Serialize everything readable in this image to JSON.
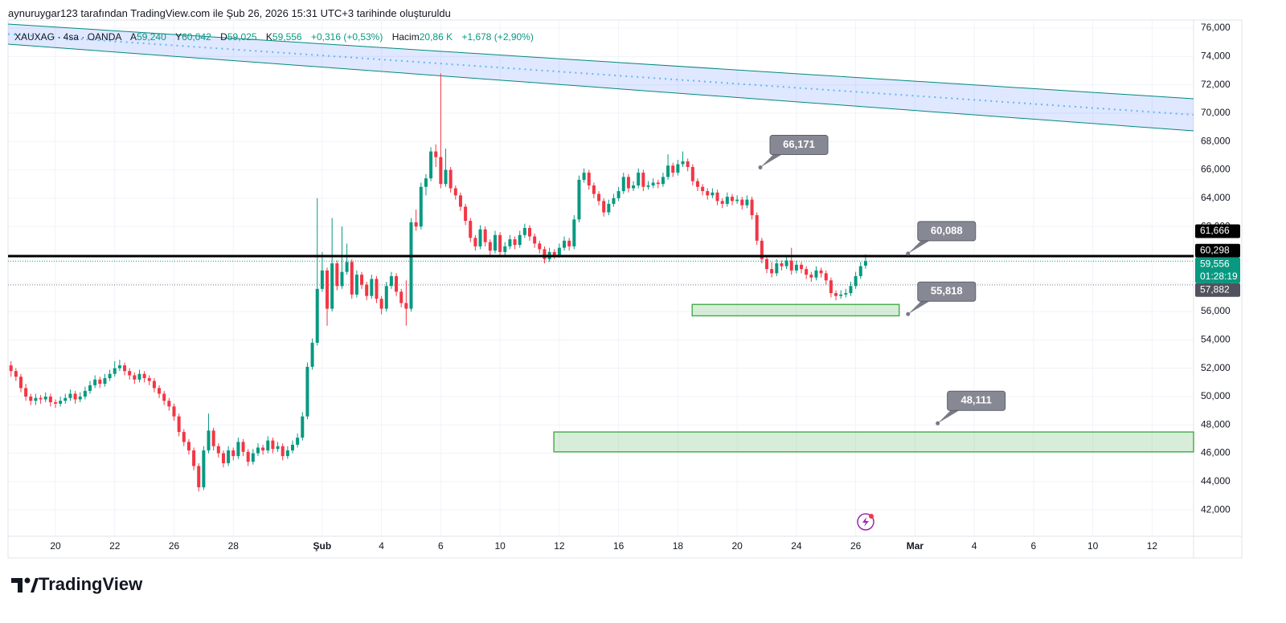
{
  "header": {
    "attribution": "aynuruygar123 tarafından TradingView.com ile Şub 26, 2026 15:31 UTC+3 tarihinde oluşturuldu"
  },
  "footer": {
    "brand": "TradingView"
  },
  "chart_data": {
    "type": "candlestick",
    "symbol": "XAUXAG · 4sa · OANDA",
    "legend": {
      "open_key": "A",
      "open": "59,240",
      "high_key": "Y",
      "high": "60,042",
      "low_key": "D",
      "low": "59,025",
      "close_key": "K",
      "close": "59,556",
      "change": "+0,316 (+0,53%)",
      "volume_key": "Hacim",
      "volume": "20,86 K",
      "volume_change": "+1,678 (+2,90%)"
    },
    "up_color": "#089981",
    "down_color": "#f23645",
    "ohlc": [
      [
        52.2,
        52.5,
        51.4,
        51.8
      ],
      [
        51.8,
        52.0,
        51.1,
        51.4
      ],
      [
        51.4,
        51.6,
        50.3,
        50.6
      ],
      [
        50.6,
        50.9,
        49.7,
        50.0
      ],
      [
        50.0,
        50.2,
        49.4,
        49.7
      ],
      [
        49.7,
        50.2,
        49.4,
        49.9
      ],
      [
        49.9,
        50.1,
        49.5,
        49.8
      ],
      [
        49.8,
        50.3,
        49.6,
        50.0
      ],
      [
        50.0,
        50.2,
        49.3,
        49.6
      ],
      [
        49.6,
        49.8,
        49.2,
        49.5
      ],
      [
        49.5,
        50.0,
        49.3,
        49.7
      ],
      [
        49.7,
        50.2,
        49.5,
        49.9
      ],
      [
        49.9,
        50.5,
        49.7,
        50.2
      ],
      [
        50.2,
        50.4,
        49.5,
        49.8
      ],
      [
        49.8,
        50.3,
        49.6,
        50.0
      ],
      [
        50.0,
        50.7,
        49.8,
        50.4
      ],
      [
        50.4,
        51.1,
        50.2,
        50.8
      ],
      [
        50.8,
        51.5,
        50.6,
        51.2
      ],
      [
        51.2,
        51.4,
        50.6,
        50.9
      ],
      [
        50.9,
        51.6,
        50.7,
        51.3
      ],
      [
        51.3,
        51.9,
        51.1,
        51.6
      ],
      [
        51.6,
        52.5,
        51.4,
        52.0
      ],
      [
        52.0,
        52.6,
        51.8,
        52.2
      ],
      [
        52.2,
        52.4,
        51.5,
        51.8
      ],
      [
        51.8,
        52.0,
        51.2,
        51.5
      ],
      [
        51.5,
        51.7,
        50.9,
        51.2
      ],
      [
        51.2,
        51.9,
        51.0,
        51.6
      ],
      [
        51.6,
        51.8,
        51.0,
        51.3
      ],
      [
        51.3,
        51.5,
        50.8,
        51.1
      ],
      [
        51.1,
        51.3,
        50.3,
        50.6
      ],
      [
        50.6,
        50.8,
        49.9,
        50.2
      ],
      [
        50.2,
        50.4,
        49.4,
        49.7
      ],
      [
        49.7,
        49.9,
        49.0,
        49.3
      ],
      [
        49.3,
        49.5,
        48.3,
        48.6
      ],
      [
        48.6,
        48.8,
        47.2,
        47.5
      ],
      [
        47.5,
        47.7,
        46.5,
        46.8
      ],
      [
        46.8,
        47.0,
        45.9,
        46.2
      ],
      [
        46.2,
        46.4,
        44.8,
        45.1
      ],
      [
        45.1,
        45.3,
        43.3,
        43.6
      ],
      [
        43.6,
        46.5,
        43.4,
        46.2
      ],
      [
        46.2,
        48.8,
        46.0,
        47.6
      ],
      [
        47.6,
        47.8,
        46.2,
        46.5
      ],
      [
        46.5,
        46.7,
        45.7,
        46.0
      ],
      [
        46.0,
        46.2,
        45.0,
        45.3
      ],
      [
        45.3,
        46.5,
        45.1,
        46.2
      ],
      [
        46.2,
        46.4,
        45.5,
        45.8
      ],
      [
        45.8,
        47.1,
        45.6,
        46.8
      ],
      [
        46.8,
        47.0,
        45.8,
        46.1
      ],
      [
        46.1,
        46.3,
        45.1,
        45.4
      ],
      [
        45.4,
        46.3,
        45.2,
        46.0
      ],
      [
        46.0,
        46.7,
        45.8,
        46.4
      ],
      [
        46.4,
        46.6,
        45.9,
        46.2
      ],
      [
        46.2,
        47.2,
        46.0,
        46.9
      ],
      [
        46.9,
        47.1,
        46.0,
        46.3
      ],
      [
        46.3,
        46.8,
        46.1,
        46.5
      ],
      [
        46.5,
        46.7,
        45.5,
        45.8
      ],
      [
        45.8,
        46.5,
        45.6,
        46.2
      ],
      [
        46.2,
        46.9,
        46.0,
        46.6
      ],
      [
        46.6,
        47.4,
        46.4,
        47.1
      ],
      [
        47.1,
        48.9,
        46.9,
        48.6
      ],
      [
        48.6,
        52.4,
        48.4,
        52.1
      ],
      [
        52.1,
        54.1,
        51.9,
        53.8
      ],
      [
        53.8,
        64.0,
        53.6,
        57.6
      ],
      [
        57.6,
        60.2,
        57.4,
        58.9
      ],
      [
        58.9,
        59.1,
        55.0,
        56.2
      ],
      [
        56.2,
        62.6,
        56.0,
        59.4
      ],
      [
        59.4,
        59.6,
        57.5,
        57.8
      ],
      [
        57.8,
        62.0,
        57.6,
        58.8
      ],
      [
        58.8,
        60.8,
        58.6,
        59.5
      ],
      [
        59.5,
        59.7,
        56.9,
        57.2
      ],
      [
        57.2,
        58.9,
        57.0,
        58.6
      ],
      [
        58.6,
        58.8,
        57.6,
        57.9
      ],
      [
        57.9,
        58.1,
        56.8,
        57.1
      ],
      [
        57.1,
        58.6,
        56.9,
        58.3
      ],
      [
        58.3,
        58.5,
        56.6,
        56.9
      ],
      [
        56.9,
        57.1,
        55.8,
        56.2
      ],
      [
        56.2,
        58.1,
        56.0,
        57.8
      ],
      [
        57.8,
        58.8,
        57.6,
        58.5
      ],
      [
        58.5,
        58.7,
        57.1,
        57.4
      ],
      [
        57.4,
        57.6,
        56.3,
        56.6
      ],
      [
        56.6,
        58.2,
        55.0,
        56.2
      ],
      [
        56.2,
        62.6,
        56.0,
        62.3
      ],
      [
        62.3,
        63.2,
        61.7,
        62.0
      ],
      [
        62.0,
        65.1,
        61.8,
        64.8
      ],
      [
        64.8,
        65.7,
        64.2,
        65.4
      ],
      [
        65.4,
        67.6,
        65.2,
        67.3
      ],
      [
        67.3,
        67.8,
        66.2,
        66.9
      ],
      [
        66.9,
        72.8,
        64.7,
        65.0
      ],
      [
        65.0,
        67.5,
        64.8,
        66.0
      ],
      [
        66.0,
        66.2,
        64.4,
        64.7
      ],
      [
        64.7,
        64.9,
        63.9,
        64.2
      ],
      [
        64.2,
        64.4,
        63.1,
        63.4
      ],
      [
        63.4,
        63.6,
        62.1,
        62.4
      ],
      [
        62.4,
        62.6,
        60.9,
        61.2
      ],
      [
        61.2,
        61.4,
        60.3,
        60.6
      ],
      [
        60.6,
        62.1,
        60.4,
        61.8
      ],
      [
        61.8,
        62.0,
        60.6,
        60.9
      ],
      [
        60.9,
        61.1,
        60.0,
        60.3
      ],
      [
        60.3,
        61.7,
        60.1,
        61.4
      ],
      [
        61.4,
        61.6,
        59.9,
        60.2
      ],
      [
        60.2,
        60.9,
        60.0,
        60.6
      ],
      [
        60.6,
        61.4,
        60.4,
        61.1
      ],
      [
        61.1,
        61.3,
        60.4,
        60.7
      ],
      [
        60.7,
        61.7,
        60.5,
        61.4
      ],
      [
        61.4,
        62.2,
        61.2,
        61.9
      ],
      [
        61.9,
        62.1,
        61.0,
        61.3
      ],
      [
        61.3,
        61.5,
        60.5,
        60.8
      ],
      [
        60.8,
        61.0,
        60.1,
        60.4
      ],
      [
        60.4,
        60.6,
        59.4,
        59.7
      ],
      [
        59.7,
        60.5,
        59.5,
        60.2
      ],
      [
        60.2,
        60.4,
        59.7,
        60.0
      ],
      [
        60.0,
        60.8,
        59.8,
        60.5
      ],
      [
        60.5,
        61.3,
        60.3,
        61.0
      ],
      [
        61.0,
        61.2,
        60.3,
        60.6
      ],
      [
        60.6,
        62.8,
        60.4,
        62.5
      ],
      [
        62.5,
        65.6,
        62.3,
        65.3
      ],
      [
        65.3,
        66.1,
        65.1,
        65.8
      ],
      [
        65.8,
        66.0,
        64.6,
        64.9
      ],
      [
        64.9,
        65.1,
        64.0,
        64.3
      ],
      [
        64.3,
        64.5,
        63.5,
        63.8
      ],
      [
        63.8,
        64.0,
        62.7,
        63.0
      ],
      [
        63.0,
        63.9,
        62.8,
        63.6
      ],
      [
        63.6,
        64.3,
        63.4,
        64.0
      ],
      [
        64.0,
        64.8,
        63.8,
        64.5
      ],
      [
        64.5,
        65.8,
        64.3,
        65.5
      ],
      [
        65.5,
        65.7,
        64.4,
        64.7
      ],
      [
        64.7,
        65.2,
        64.5,
        64.9
      ],
      [
        64.9,
        66.1,
        64.7,
        65.8
      ],
      [
        65.8,
        66.0,
        64.5,
        64.8
      ],
      [
        64.8,
        65.2,
        64.6,
        64.9
      ],
      [
        64.9,
        65.4,
        64.7,
        65.1
      ],
      [
        65.1,
        65.3,
        64.7,
        65.0
      ],
      [
        65.0,
        65.8,
        64.8,
        65.5
      ],
      [
        65.5,
        67.1,
        65.3,
        66.3
      ],
      [
        66.3,
        66.5,
        65.5,
        65.8
      ],
      [
        65.8,
        66.7,
        65.6,
        66.4
      ],
      [
        66.4,
        67.3,
        66.2,
        66.6
      ],
      [
        66.6,
        66.8,
        65.9,
        66.2
      ],
      [
        66.2,
        66.4,
        64.9,
        65.2
      ],
      [
        65.2,
        65.4,
        64.5,
        64.8
      ],
      [
        64.8,
        65.0,
        64.2,
        64.5
      ],
      [
        64.5,
        64.7,
        63.9,
        64.2
      ],
      [
        64.2,
        64.7,
        64.0,
        64.4
      ],
      [
        64.4,
        64.6,
        63.5,
        63.8
      ],
      [
        63.8,
        64.0,
        63.3,
        63.6
      ],
      [
        63.6,
        64.4,
        63.4,
        64.1
      ],
      [
        64.1,
        64.3,
        63.5,
        63.8
      ],
      [
        63.8,
        64.2,
        63.6,
        63.9
      ],
      [
        63.9,
        64.1,
        63.2,
        63.5
      ],
      [
        63.5,
        64.2,
        63.3,
        63.9
      ],
      [
        63.9,
        64.1,
        62.5,
        62.8
      ],
      [
        62.8,
        63.0,
        60.7,
        61.0
      ],
      [
        61.0,
        61.2,
        59.4,
        59.7
      ],
      [
        59.7,
        59.9,
        58.7,
        59.0
      ],
      [
        59.0,
        59.5,
        58.4,
        58.7
      ],
      [
        58.7,
        59.7,
        58.5,
        59.4
      ],
      [
        59.4,
        59.6,
        58.9,
        59.2
      ],
      [
        59.2,
        59.9,
        59.0,
        59.6
      ],
      [
        59.6,
        60.5,
        58.6,
        58.9
      ],
      [
        58.9,
        59.6,
        58.7,
        59.3
      ],
      [
        59.3,
        59.5,
        58.7,
        59.0
      ],
      [
        59.0,
        59.2,
        58.3,
        58.6
      ],
      [
        58.6,
        58.8,
        58.1,
        58.4
      ],
      [
        58.4,
        59.2,
        58.2,
        58.9
      ],
      [
        58.9,
        59.1,
        58.4,
        58.7
      ],
      [
        58.7,
        58.9,
        57.9,
        58.2
      ],
      [
        58.2,
        58.4,
        57.0,
        57.3
      ],
      [
        57.3,
        57.5,
        56.8,
        57.1
      ],
      [
        57.1,
        57.5,
        56.9,
        57.2
      ],
      [
        57.2,
        57.6,
        57.0,
        57.3
      ],
      [
        57.3,
        58.1,
        57.1,
        57.8
      ],
      [
        57.8,
        58.8,
        57.6,
        58.5
      ],
      [
        58.5,
        59.5,
        58.3,
        59.2
      ],
      [
        59.24,
        60.042,
        59.025,
        59.556
      ]
    ],
    "xlim": [
      -0.6,
      239.4
    ],
    "xticks": [
      {
        "value": 9,
        "label": "20"
      },
      {
        "value": 21,
        "label": "22"
      },
      {
        "value": 33,
        "label": "26"
      },
      {
        "value": 45,
        "label": "28"
      },
      {
        "value": 63,
        "label": "Şub"
      },
      {
        "value": 75,
        "label": "4"
      },
      {
        "value": 87,
        "label": "6"
      },
      {
        "value": 99,
        "label": "10"
      },
      {
        "value": 111,
        "label": "12"
      },
      {
        "value": 123,
        "label": "16"
      },
      {
        "value": 135,
        "label": "18"
      },
      {
        "value": 147,
        "label": "20"
      },
      {
        "value": 159,
        "label": "24"
      },
      {
        "value": 171,
        "label": "26"
      },
      {
        "value": 183,
        "label": "Mar"
      },
      {
        "value": 195,
        "label": "4"
      },
      {
        "value": 207,
        "label": "6"
      },
      {
        "value": 219,
        "label": "10"
      },
      {
        "value": 231,
        "label": "12"
      }
    ],
    "ylim": [
      40.14,
      76.57
    ],
    "yticks": [
      {
        "value": 42,
        "label": "42,000"
      },
      {
        "value": 44,
        "label": "44,000"
      },
      {
        "value": 46,
        "label": "46,000"
      },
      {
        "value": 48,
        "label": "48,000"
      },
      {
        "value": 50,
        "label": "50,000"
      },
      {
        "value": 52,
        "label": "52,000"
      },
      {
        "value": 54,
        "label": "54,000"
      },
      {
        "value": 56,
        "label": "56,000"
      },
      {
        "value": 58,
        "label": "58,000"
      },
      {
        "value": 60,
        "label": "60,000"
      },
      {
        "value": 62,
        "label": "62,000"
      },
      {
        "value": 64,
        "label": "64,000"
      },
      {
        "value": 66,
        "label": "66,000"
      },
      {
        "value": 68,
        "label": "68,000"
      },
      {
        "value": 70,
        "label": "70,000"
      },
      {
        "value": 72,
        "label": "72,000"
      },
      {
        "value": 74,
        "label": "74,000"
      },
      {
        "value": 76,
        "label": "76,000"
      }
    ],
    "grid": true,
    "price_badges": [
      {
        "value": 61.666,
        "label": "61,666",
        "color": "#000000"
      },
      {
        "value": 60.298,
        "label": "60,298",
        "color": "#000000"
      },
      {
        "value": 59.556,
        "label": "59,556",
        "countdown": "01:28:19",
        "color": "#089981",
        "dotted": true
      },
      {
        "value": 57.882,
        "label": "57,882",
        "color": "#50535e",
        "dotted": true
      }
    ],
    "hline": {
      "value": 59.91,
      "color": "#000000"
    },
    "channel": {
      "color": "#2962ff",
      "upper": [
        [
          -0.6,
          76.29
        ],
        [
          239.4,
          71.02
        ]
      ],
      "lower": [
        [
          -0.6,
          74.87
        ],
        [
          239.4,
          68.75
        ]
      ]
    },
    "zones": [
      {
        "from": 137.9,
        "to": 179.8,
        "top": 56.5,
        "bottom": 55.7,
        "color": "#4caf50"
      },
      {
        "from": 109.9,
        "to": 239.4,
        "top": 47.5,
        "bottom": 46.1,
        "color": "#4caf50"
      }
    ],
    "notes": [
      {
        "value": 66.171,
        "label": "66,171",
        "at": 151.7
      },
      {
        "value": 60.088,
        "label": "60,088",
        "at": 181.6
      },
      {
        "value": 55.818,
        "label": "55,818",
        "at": 181.6
      },
      {
        "value": 48.111,
        "label": "48,111",
        "at": 187.6
      }
    ]
  }
}
